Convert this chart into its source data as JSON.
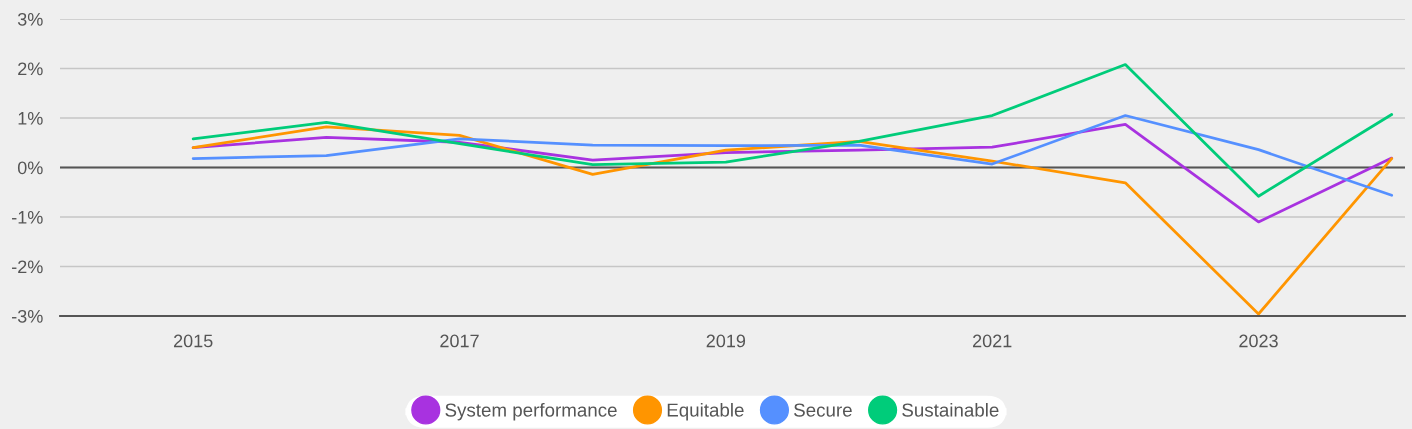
{
  "chart_data": {
    "type": "line",
    "x": [
      2015,
      2016,
      2017,
      2018,
      2019,
      2020,
      2021,
      2022,
      2023,
      2024
    ],
    "xlim": [
      2014,
      2024.1
    ],
    "xticks": [
      2015,
      2017,
      2019,
      2021,
      2023
    ],
    "ylim": [
      -3,
      3
    ],
    "yticks": [
      {
        "value": -3,
        "label": "-3%"
      },
      {
        "value": -2,
        "label": "-2%"
      },
      {
        "value": -1,
        "label": "-1%"
      },
      {
        "value": 0,
        "label": "0%"
      },
      {
        "value": 1,
        "label": "1%"
      },
      {
        "value": 2,
        "label": "2%"
      },
      {
        "value": 3,
        "label": "3%"
      }
    ],
    "grid": "y",
    "legend": "bottom",
    "line_style": "solid",
    "ref_lines": [
      {
        "axis": "y",
        "value": 0,
        "color": "#555555"
      }
    ],
    "series": [
      {
        "name": "System performance",
        "color": "#a832e0",
        "values": [
          0.4,
          0.61,
          0.51,
          0.15,
          0.3,
          0.35,
          0.41,
          0.87,
          -1.1,
          0.19
        ]
      },
      {
        "name": "Equitable",
        "color": "#ff9500",
        "values": [
          0.4,
          0.82,
          0.65,
          -0.14,
          0.35,
          0.53,
          0.13,
          -0.31,
          -2.96,
          0.18
        ]
      },
      {
        "name": "Secure",
        "color": "#5590ff",
        "values": [
          0.18,
          0.24,
          0.58,
          0.45,
          0.44,
          0.45,
          0.07,
          1.05,
          0.36,
          -0.56
        ]
      },
      {
        "name": "Sustainable",
        "color": "#00cc7a",
        "values": [
          0.58,
          0.91,
          0.48,
          0.06,
          0.11,
          0.53,
          1.05,
          2.08,
          -0.58,
          1.07
        ]
      }
    ]
  }
}
